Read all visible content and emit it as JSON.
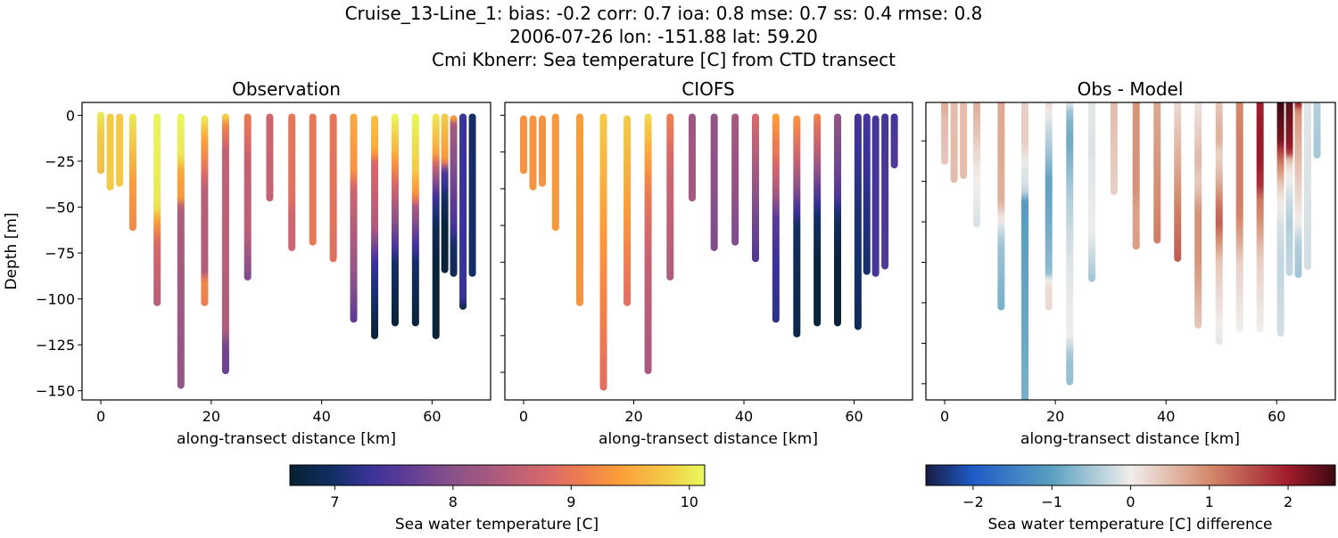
{
  "figure": {
    "title_lines": [
      "Cruise_13-Line_1: bias: -0.2  corr: 0.7  ioa: 0.8  mse: 0.7  ss: 0.4  rmse: 0.8",
      "2006-07-26 lon: -151.88 lat: 59.20",
      "Cmi Kbnerr: Sea temperature [C] from CTD transect"
    ]
  },
  "chart_data": [
    {
      "type": "scatter",
      "title": "Observation",
      "xlabel": "along-transect distance [km]",
      "ylabel": "Depth [m]",
      "xlim": [
        -3.4,
        70.6
      ],
      "ylim": [
        -155,
        7
      ],
      "xticks": [
        0,
        20,
        40,
        60
      ],
      "yticks": [
        0,
        -25,
        -50,
        -75,
        -100,
        -125,
        -150
      ],
      "ytick_labels_shown": true,
      "colormap": "thermal",
      "profiles": [
        {
          "x": 0.0,
          "stops": [
            [
              0,
              10.0
            ],
            [
              -10,
              9.8
            ],
            [
              -30,
              9.7
            ]
          ]
        },
        {
          "x": 1.7,
          "stops": [
            [
              -1,
              9.8
            ],
            [
              -39,
              9.8
            ]
          ]
        },
        {
          "x": 3.4,
          "stops": [
            [
              -1,
              9.8
            ],
            [
              -37,
              9.8
            ]
          ]
        },
        {
          "x": 5.8,
          "stops": [
            [
              -1,
              10.0
            ],
            [
              -20,
              9.7
            ],
            [
              -35,
              9.4
            ],
            [
              -61,
              9.2
            ]
          ]
        },
        {
          "x": 10.2,
          "stops": [
            [
              -1,
              10.1
            ],
            [
              -50,
              10.0
            ],
            [
              -58,
              9.4
            ],
            [
              -70,
              8.8
            ],
            [
              -102,
              8.5
            ]
          ]
        },
        {
          "x": 14.5,
          "stops": [
            [
              -1,
              10.1
            ],
            [
              -23,
              10.0
            ],
            [
              -30,
              9.5
            ],
            [
              -48,
              9.3
            ],
            [
              -50,
              8.4
            ],
            [
              -147,
              8.1
            ]
          ]
        },
        {
          "x": 18.8,
          "stops": [
            [
              -2,
              10.0
            ],
            [
              -12,
              9.5
            ],
            [
              -25,
              9.1
            ],
            [
              -40,
              8.5
            ],
            [
              -85,
              8.4
            ],
            [
              -90,
              9.2
            ],
            [
              -102,
              9.1
            ]
          ]
        },
        {
          "x": 22.6,
          "stops": [
            [
              -1,
              9.8
            ],
            [
              -5,
              9.2
            ],
            [
              -20,
              8.6
            ],
            [
              -118,
              8.4
            ],
            [
              -125,
              7.8
            ],
            [
              -139,
              7.7
            ]
          ]
        },
        {
          "x": 26.6,
          "stops": [
            [
              -1,
              9.0
            ],
            [
              -10,
              8.9
            ],
            [
              -25,
              8.6
            ],
            [
              -65,
              8.5
            ],
            [
              -88,
              7.9
            ]
          ]
        },
        {
          "x": 30.6,
          "stops": [
            [
              -1,
              8.7
            ],
            [
              -45,
              8.6
            ]
          ]
        },
        {
          "x": 34.6,
          "stops": [
            [
              -1,
              9.0
            ],
            [
              -45,
              8.9
            ],
            [
              -55,
              8.7
            ],
            [
              -72,
              8.7
            ]
          ]
        },
        {
          "x": 38.4,
          "stops": [
            [
              -1,
              9.0
            ],
            [
              -69,
              9.0
            ]
          ]
        },
        {
          "x": 42.1,
          "stops": [
            [
              -1,
              9.0
            ],
            [
              -78,
              8.9
            ]
          ]
        },
        {
          "x": 45.8,
          "stops": [
            [
              -1,
              9.5
            ],
            [
              -30,
              9.3
            ],
            [
              -40,
              8.7
            ],
            [
              -80,
              8.2
            ],
            [
              -111,
              7.6
            ]
          ]
        },
        {
          "x": 49.6,
          "stops": [
            [
              -2,
              9.7
            ],
            [
              -20,
              9.5
            ],
            [
              -25,
              8.8
            ],
            [
              -60,
              8.4
            ],
            [
              -80,
              7.3
            ],
            [
              -100,
              7.0
            ],
            [
              -120,
              6.7
            ]
          ]
        },
        {
          "x": 53.3,
          "stops": [
            [
              -1,
              10.1
            ],
            [
              -20,
              9.6
            ],
            [
              -40,
              8.7
            ],
            [
              -70,
              7.5
            ],
            [
              -80,
              7.0
            ],
            [
              -113,
              6.7
            ]
          ]
        },
        {
          "x": 57.0,
          "stops": [
            [
              -1,
              10.1
            ],
            [
              -30,
              9.8
            ],
            [
              -45,
              9.2
            ],
            [
              -48,
              8.4
            ],
            [
              -70,
              7.4
            ],
            [
              -80,
              7.0
            ],
            [
              -113,
              6.7
            ]
          ]
        },
        {
          "x": 60.7,
          "stops": [
            [
              -1,
              10.0
            ],
            [
              -20,
              9.5
            ],
            [
              -30,
              8.4
            ],
            [
              -45,
              7.3
            ],
            [
              -60,
              6.9
            ],
            [
              -80,
              6.7
            ],
            [
              -120,
              6.7
            ]
          ]
        },
        {
          "x": 62.3,
          "stops": [
            [
              -1,
              9.8
            ],
            [
              -25,
              9.3
            ],
            [
              -30,
              7.5
            ],
            [
              -45,
              7.0
            ],
            [
              -60,
              6.7
            ],
            [
              -84,
              6.7
            ]
          ]
        },
        {
          "x": 63.9,
          "stops": [
            [
              -2,
              9.3
            ],
            [
              -5,
              8.3
            ],
            [
              -60,
              7.4
            ],
            [
              -70,
              7.0
            ],
            [
              -86,
              6.9
            ]
          ]
        },
        {
          "x": 65.6,
          "stops": [
            [
              -1,
              7.3
            ],
            [
              -100,
              7.3
            ],
            [
              -104,
              6.9
            ]
          ]
        },
        {
          "x": 67.3,
          "stops": [
            [
              -1,
              7.0
            ],
            [
              -86,
              7.0
            ]
          ]
        }
      ]
    },
    {
      "type": "scatter",
      "title": "CIOFS",
      "xlabel": "along-transect distance [km]",
      "xlim": [
        -3.4,
        70.6
      ],
      "ylim": [
        -155,
        7
      ],
      "xticks": [
        0,
        20,
        40,
        60
      ],
      "ytick_labels_shown": false,
      "colormap": "thermal",
      "profiles": [
        {
          "x": 0.0,
          "stops": [
            [
              -2,
              9.3
            ],
            [
              -30,
              9.3
            ]
          ]
        },
        {
          "x": 1.7,
          "stops": [
            [
              -2,
              9.3
            ],
            [
              -39,
              9.3
            ]
          ]
        },
        {
          "x": 3.4,
          "stops": [
            [
              -2,
              9.3
            ],
            [
              -37,
              9.3
            ]
          ]
        },
        {
          "x": 5.8,
          "stops": [
            [
              -1,
              9.35
            ],
            [
              -61,
              9.35
            ]
          ]
        },
        {
          "x": 10.2,
          "stops": [
            [
              -1,
              9.4
            ],
            [
              -102,
              9.3
            ]
          ]
        },
        {
          "x": 14.5,
          "stops": [
            [
              -1,
              9.8
            ],
            [
              -60,
              9.4
            ],
            [
              -148,
              8.9
            ]
          ]
        },
        {
          "x": 18.8,
          "stops": [
            [
              -2,
              9.8
            ],
            [
              -50,
              9.4
            ],
            [
              -102,
              8.9
            ]
          ]
        },
        {
          "x": 22.6,
          "stops": [
            [
              -1,
              9.9
            ],
            [
              -25,
              9.4
            ],
            [
              -45,
              9.0
            ],
            [
              -80,
              8.6
            ],
            [
              -139,
              8.3
            ]
          ]
        },
        {
          "x": 26.6,
          "stops": [
            [
              -1,
              9.1
            ],
            [
              -30,
              8.7
            ],
            [
              -88,
              8.4
            ]
          ]
        },
        {
          "x": 30.6,
          "stops": [
            [
              -1,
              8.2
            ],
            [
              -45,
              8.3
            ]
          ]
        },
        {
          "x": 34.6,
          "stops": [
            [
              -1,
              8.1
            ],
            [
              -72,
              7.9
            ]
          ]
        },
        {
          "x": 38.4,
          "stops": [
            [
              -1,
              8.3
            ],
            [
              -69,
              7.9
            ]
          ]
        },
        {
          "x": 42.1,
          "stops": [
            [
              -1,
              8.8
            ],
            [
              -30,
              8.3
            ],
            [
              -50,
              7.9
            ],
            [
              -78,
              7.5
            ]
          ]
        },
        {
          "x": 45.8,
          "stops": [
            [
              -1,
              9.4
            ],
            [
              -20,
              9.0
            ],
            [
              -40,
              8.4
            ],
            [
              -55,
              7.6
            ],
            [
              -80,
              7.3
            ],
            [
              -111,
              7.2
            ]
          ]
        },
        {
          "x": 49.6,
          "stops": [
            [
              -2,
              9.3
            ],
            [
              -20,
              8.8
            ],
            [
              -40,
              8.0
            ],
            [
              -50,
              7.4
            ],
            [
              -60,
              7.0
            ],
            [
              -80,
              6.9
            ],
            [
              -119,
              6.8
            ]
          ]
        },
        {
          "x": 53.3,
          "stops": [
            [
              -1,
              9.1
            ],
            [
              -20,
              8.5
            ],
            [
              -40,
              7.6
            ],
            [
              -55,
              7.0
            ],
            [
              -80,
              6.7
            ],
            [
              -113,
              6.7
            ]
          ]
        },
        {
          "x": 57.0,
          "stops": [
            [
              -1,
              8.1
            ],
            [
              -40,
              7.6
            ],
            [
              -55,
              7.0
            ],
            [
              -80,
              6.7
            ],
            [
              -113,
              6.7
            ]
          ]
        },
        {
          "x": 60.7,
          "stops": [
            [
              -1,
              7.4
            ],
            [
              -50,
              7.1
            ],
            [
              -115,
              6.9
            ]
          ]
        },
        {
          "x": 62.3,
          "stops": [
            [
              -1,
              7.4
            ],
            [
              -40,
              7.2
            ],
            [
              -85,
              7.0
            ]
          ]
        },
        {
          "x": 63.9,
          "stops": [
            [
              -2,
              7.4
            ],
            [
              -86,
              7.4
            ]
          ]
        },
        {
          "x": 65.6,
          "stops": [
            [
              -1,
              7.4
            ],
            [
              -82,
              7.5
            ]
          ]
        },
        {
          "x": 67.3,
          "stops": [
            [
              -1,
              7.4
            ],
            [
              -27,
              7.5
            ]
          ]
        }
      ]
    },
    {
      "type": "scatter",
      "title": "Obs - Model",
      "xlabel": "along-transect distance [km]",
      "xlim": [
        -3.4,
        70.6
      ],
      "ylim": [
        -148,
        -1
      ],
      "xticks": [
        0,
        20,
        40,
        60
      ],
      "ytick_labels_shown": false,
      "colormap": "balance"
    }
  ],
  "colorbars": [
    {
      "label": "Sea water temperature [C]",
      "range": [
        6.62,
        10.13
      ],
      "ticks": [
        7,
        8,
        9,
        10
      ],
      "colors": [
        [
          6.62,
          "#062030"
        ],
        [
          7.0,
          "#132f66"
        ],
        [
          7.3,
          "#3a3399"
        ],
        [
          7.6,
          "#5e3b96"
        ],
        [
          8.0,
          "#8a5189"
        ],
        [
          8.4,
          "#b05c7c"
        ],
        [
          8.8,
          "#d8696a"
        ],
        [
          9.1,
          "#ef7e4e"
        ],
        [
          9.4,
          "#fb9d3a"
        ],
        [
          9.8,
          "#f3ca47"
        ],
        [
          10.13,
          "#e8fa5b"
        ]
      ]
    },
    {
      "label": "Sea water temperature [C] difference",
      "range": [
        -2.6,
        2.6
      ],
      "ticks": [
        -2,
        -1,
        0,
        1,
        2
      ],
      "colors": [
        [
          -2.6,
          "#181c43"
        ],
        [
          -2.0,
          "#1f5bc8"
        ],
        [
          -1.0,
          "#5aa0c0"
        ],
        [
          0,
          "#f1eeec"
        ],
        [
          1.0,
          "#d48a6c"
        ],
        [
          2.0,
          "#a01c2c"
        ],
        [
          2.6,
          "#3c0911"
        ]
      ]
    }
  ]
}
